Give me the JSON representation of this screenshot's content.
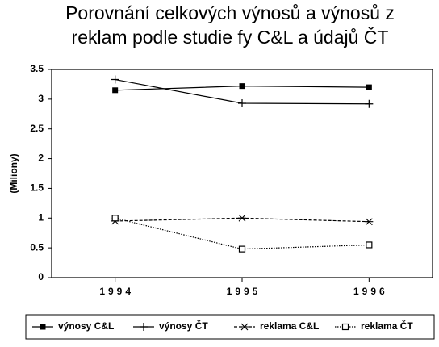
{
  "chart_data": {
    "type": "line",
    "title": [
      "Porovnání celkových výnosů a výnosů z",
      "reklam podle  studie fy C&L a údajů  ČT"
    ],
    "y_label": "(Miliony)",
    "categories": [
      "1994",
      "1995",
      "1996"
    ],
    "ylim": [
      0,
      3.5
    ],
    "yticks": [
      0,
      0.5,
      1,
      1.5,
      2,
      2.5,
      3,
      3.5
    ],
    "grid": false,
    "legend": "bottom",
    "series": [
      {
        "name": "výnosy  C&L",
        "color": "#000000",
        "marker": "filled-square",
        "dash": "solid",
        "values": [
          3.15,
          3.22,
          3.2
        ]
      },
      {
        "name": "výnosy  ČT",
        "color": "#000000",
        "marker": "plus",
        "dash": "solid",
        "values": [
          3.33,
          2.93,
          2.92
        ]
      },
      {
        "name": "reklama C&L",
        "color": "#000000",
        "marker": "asterisk",
        "dash": "dashed",
        "values": [
          0.95,
          1.0,
          0.94
        ]
      },
      {
        "name": "reklama ČT",
        "color": "#000000",
        "marker": "open-square",
        "dash": "dotted",
        "values": [
          1.0,
          0.48,
          0.55
        ]
      }
    ]
  }
}
